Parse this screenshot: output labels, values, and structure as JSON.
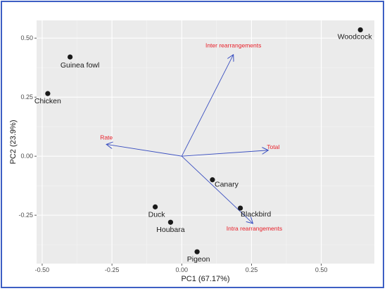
{
  "chart_data": {
    "type": "scatter",
    "title": "",
    "xlabel": "PC1 (67.17%)",
    "ylabel": "PC2 (23.9%)",
    "xlim": [
      -0.52,
      0.69
    ],
    "ylim": [
      -0.455,
      0.575
    ],
    "x_ticks": [
      -0.5,
      -0.25,
      0.0,
      0.25,
      0.5
    ],
    "x_tick_labels": [
      "-0.50",
      "-0.25",
      "0.00",
      "0.25",
      "0.50"
    ],
    "y_ticks": [
      -0.25,
      0.0,
      0.25,
      0.5
    ],
    "y_tick_labels": [
      "-0.25",
      "0.00",
      "0.25",
      "0.50"
    ],
    "grid": true,
    "background": "#ebebeb",
    "points": [
      {
        "label": "Woodcock",
        "x": 0.64,
        "y": 0.535
      },
      {
        "label": "Guinea fowl",
        "x": -0.4,
        "y": 0.42
      },
      {
        "label": "Chicken",
        "x": -0.48,
        "y": 0.265
      },
      {
        "label": "Canary",
        "x": 0.11,
        "y": -0.1
      },
      {
        "label": "Blackbird",
        "x": 0.21,
        "y": -0.22
      },
      {
        "label": "Duck",
        "x": -0.095,
        "y": -0.215
      },
      {
        "label": "Houbara",
        "x": -0.04,
        "y": -0.28
      },
      {
        "label": "Pigeon",
        "x": 0.055,
        "y": -0.405
      }
    ],
    "vectors": [
      {
        "label": "Inter rearrangements",
        "x": 0.185,
        "y": 0.43
      },
      {
        "label": "Rate",
        "x": -0.27,
        "y": 0.05
      },
      {
        "label": "Total",
        "x": 0.31,
        "y": 0.025
      },
      {
        "label": "Intra rearrangements",
        "x": 0.255,
        "y": -0.285
      }
    ],
    "point_color": "#1a1a1a",
    "vector_color": "#3a4fc0",
    "vector_label_color": "#e8202a"
  }
}
